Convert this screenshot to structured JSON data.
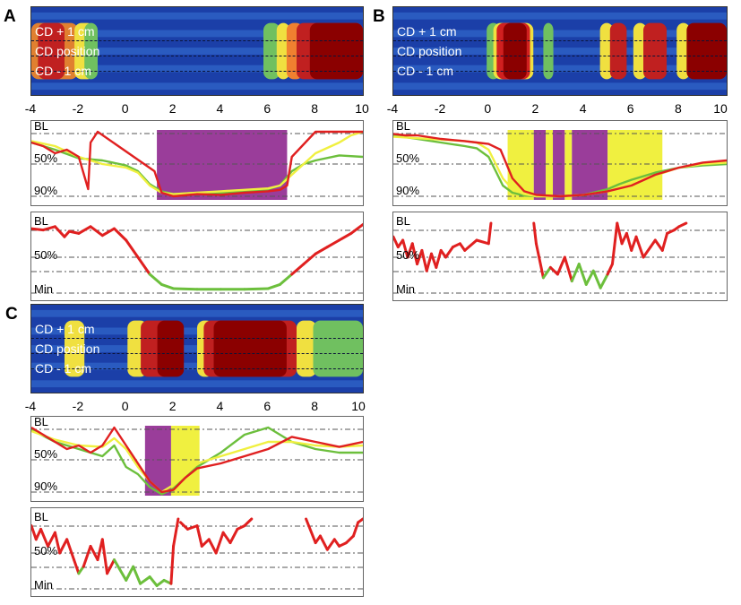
{
  "panels": {
    "A": {
      "letter": "A"
    },
    "B": {
      "letter": "B"
    },
    "C": {
      "letter": "C"
    }
  },
  "heatmap_labels": [
    "CD + 1 cm",
    "CD position",
    "CD - 1 cm"
  ],
  "axis_ticks": [
    "-4",
    "-2",
    "0",
    "2",
    "4",
    "6",
    "8",
    "10"
  ],
  "trace_levels_top": [
    "BL",
    "50%",
    "90%"
  ],
  "trace_levels_bottom": [
    "BL",
    "50%",
    "Min"
  ],
  "colors": {
    "red": "#e02020",
    "yellow": "#f0f040",
    "green": "#6cbf3c",
    "purple": "#9a3d9a",
    "dark_red": "#8b0000"
  },
  "chart_data": [
    {
      "panel": "A",
      "type": "line",
      "x_range": [
        -4,
        10
      ],
      "heatmap_rows": [
        "CD + 1 cm",
        "CD position",
        "CD - 1 cm"
      ],
      "shaded_regions": [
        {
          "from": 1.3,
          "to": 6.8,
          "color": "purple"
        }
      ],
      "series_top": [
        {
          "color": "red",
          "x": [
            -4,
            -3.5,
            -3,
            -2.5,
            -2,
            -1.6,
            -1.5,
            -1.2,
            1.2,
            1.5,
            2,
            3,
            4,
            5,
            6,
            6.5,
            6.8,
            7,
            8,
            9,
            10
          ],
          "y": [
            20,
            25,
            35,
            30,
            40,
            85,
            20,
            5,
            60,
            90,
            95,
            92,
            93,
            90,
            88,
            86,
            80,
            40,
            5,
            5,
            5
          ]
        },
        {
          "color": "yellow",
          "x": [
            -4,
            -3,
            -2,
            -1,
            0,
            0.5,
            1,
            1.5,
            2,
            3,
            4,
            5,
            6,
            6.5,
            7,
            7.5,
            8,
            9,
            9.5,
            10
          ],
          "y": [
            18,
            25,
            40,
            50,
            55,
            62,
            80,
            90,
            92,
            90,
            88,
            86,
            84,
            80,
            65,
            50,
            35,
            20,
            10,
            5
          ]
        },
        {
          "color": "green",
          "x": [
            -4,
            -3.5,
            -3,
            -2,
            -1,
            0,
            0.5,
            1,
            1.5,
            2,
            3,
            4,
            5,
            6,
            6.5,
            7,
            7.5,
            8,
            9,
            10
          ],
          "y": [
            20,
            25,
            30,
            42,
            45,
            52,
            60,
            78,
            88,
            92,
            90,
            90,
            88,
            85,
            80,
            60,
            50,
            45,
            38,
            40
          ]
        }
      ],
      "series_bottom": [
        {
          "x": [
            -4,
            -3.5,
            -3,
            -2.6,
            -2.4,
            -2,
            -1.5,
            -1,
            -0.5,
            0,
            0.5,
            1,
            1.5,
            2,
            3,
            4,
            5,
            6,
            6.5,
            7,
            7.5,
            8,
            8.5,
            9,
            9.5,
            10
          ],
          "y": [
            8,
            10,
            5,
            20,
            12,
            15,
            5,
            18,
            8,
            25,
            50,
            75,
            90,
            96,
            97,
            97,
            97,
            96,
            90,
            75,
            60,
            45,
            35,
            25,
            15,
            2
          ]
        }
      ]
    },
    {
      "panel": "B",
      "type": "line",
      "x_range": [
        -4,
        10
      ],
      "heatmap_rows": [
        "CD + 1 cm",
        "CD position",
        "CD - 1 cm"
      ],
      "shaded_regions": [
        {
          "from": 0.8,
          "to": 1.9,
          "color": "yellow"
        },
        {
          "from": 1.9,
          "to": 2.4,
          "color": "purple"
        },
        {
          "from": 2.4,
          "to": 2.7,
          "color": "yellow"
        },
        {
          "from": 2.7,
          "to": 3.2,
          "color": "purple"
        },
        {
          "from": 3.2,
          "to": 3.5,
          "color": "yellow"
        },
        {
          "from": 3.5,
          "to": 5.0,
          "color": "purple"
        },
        {
          "from": 5.0,
          "to": 7.3,
          "color": "yellow"
        }
      ],
      "series_top": [
        {
          "color": "red",
          "x": [
            -4,
            -3.5,
            -3,
            -2,
            -1,
            -0.5,
            0,
            0.5,
            1,
            1.5,
            2,
            3,
            4,
            5,
            6,
            7,
            8,
            9,
            10
          ],
          "y": [
            8,
            10,
            10,
            15,
            18,
            20,
            22,
            30,
            70,
            88,
            93,
            95,
            93,
            88,
            80,
            65,
            55,
            48,
            45
          ]
        },
        {
          "color": "yellow",
          "x": [
            -4,
            -3,
            -2,
            -1,
            -0.5,
            0,
            0.3,
            0.6,
            1,
            1.5,
            2,
            3,
            4,
            5,
            6,
            7,
            8,
            9,
            10
          ],
          "y": [
            12,
            14,
            16,
            18,
            20,
            30,
            50,
            70,
            85,
            92,
            95,
            95,
            93,
            88,
            80,
            66,
            55,
            50,
            48
          ]
        },
        {
          "color": "green",
          "x": [
            -4,
            -3,
            -2,
            -1,
            -0.5,
            0,
            0.3,
            0.6,
            1,
            1.5,
            2,
            3,
            4,
            5,
            5.5,
            6,
            7,
            8,
            9,
            10
          ],
          "y": [
            10,
            15,
            20,
            25,
            28,
            40,
            60,
            80,
            90,
            94,
            95,
            95,
            93,
            85,
            78,
            72,
            62,
            55,
            52,
            50
          ]
        }
      ],
      "series_bottom": [
        {
          "x": [
            -4,
            -3.8,
            -3.6,
            -3.4,
            -3.2,
            -3,
            -2.8,
            -2.6,
            -2.4,
            -2.2,
            -2,
            -1.8,
            -1.5,
            -1.2,
            -1,
            -0.5,
            0,
            0.1
          ],
          "y": [
            20,
            35,
            25,
            50,
            30,
            60,
            40,
            70,
            45,
            65,
            40,
            50,
            35,
            30,
            40,
            25,
            30,
            0
          ]
        },
        {
          "x": [
            1.9,
            2,
            2.3,
            2.6,
            2.9,
            3.2,
            3.5,
            3.8,
            4.1,
            4.4,
            4.7,
            5,
            5.2,
            5.4
          ],
          "y": [
            0,
            30,
            80,
            65,
            75,
            50,
            85,
            60,
            90,
            70,
            95,
            75,
            60,
            0
          ]
        },
        {
          "x": [
            5.4,
            5.6,
            5.8,
            6,
            6.2,
            6.5,
            6.8,
            7,
            7.3,
            7.5,
            7.8,
            8,
            8.3
          ],
          "y": [
            0,
            30,
            15,
            40,
            20,
            50,
            35,
            25,
            40,
            15,
            10,
            5,
            0
          ]
        }
      ]
    },
    {
      "panel": "C",
      "type": "line",
      "x_range": [
        -4,
        10
      ],
      "heatmap_rows": [
        "CD + 1 cm",
        "CD position",
        "CD - 1 cm"
      ],
      "shaded_regions": [
        {
          "from": 0.8,
          "to": 1.9,
          "color": "purple"
        },
        {
          "from": 1.9,
          "to": 3.1,
          "color": "yellow"
        }
      ],
      "series_top": [
        {
          "color": "red",
          "x": [
            -4,
            -3.5,
            -3,
            -2.5,
            -2,
            -1.5,
            -1,
            -0.5,
            0,
            0.5,
            1,
            1.5,
            2,
            2.5,
            3,
            4,
            5,
            6,
            7,
            8,
            9,
            10
          ],
          "y": [
            5,
            15,
            25,
            35,
            30,
            40,
            30,
            5,
            30,
            55,
            80,
            95,
            92,
            75,
            62,
            55,
            45,
            35,
            18,
            25,
            32,
            25
          ]
        },
        {
          "color": "yellow",
          "x": [
            -4,
            -3,
            -2,
            -1,
            -0.5,
            0,
            0.5,
            1,
            1.5,
            2,
            2.5,
            3,
            4,
            5,
            6,
            7,
            8,
            9,
            10
          ],
          "y": [
            10,
            22,
            30,
            32,
            20,
            35,
            60,
            80,
            95,
            85,
            65,
            55,
            45,
            35,
            25,
            25,
            30,
            32,
            30
          ]
        },
        {
          "color": "green",
          "x": [
            -4,
            -3,
            -2,
            -1,
            -0.5,
            0,
            0.5,
            1,
            1.5,
            2,
            2.5,
            3,
            4,
            5,
            6,
            7,
            8,
            9,
            10
          ],
          "y": [
            8,
            25,
            35,
            45,
            30,
            60,
            70,
            88,
            98,
            90,
            75,
            60,
            40,
            15,
            5,
            25,
            35,
            40,
            40
          ]
        }
      ],
      "series_bottom": [
        {
          "x": [
            -4,
            -3.8,
            -3.6,
            -3.3,
            -3,
            -2.8,
            -2.5,
            -2.2,
            -2,
            -1.8,
            -1.5,
            -1.2,
            -1,
            -0.8,
            -0.5,
            0,
            0.3,
            0.6,
            1,
            1.3,
            1.6,
            1.9,
            2,
            2.2
          ],
          "y": [
            10,
            30,
            15,
            40,
            20,
            50,
            30,
            60,
            80,
            70,
            40,
            60,
            30,
            80,
            60,
            90,
            70,
            95,
            85,
            98,
            90,
            95,
            40,
            0
          ]
        },
        {
          "x": [
            2.3,
            2.6,
            3,
            3.2,
            3.5,
            3.8,
            4.1,
            4.4,
            4.7,
            5,
            5.3
          ],
          "y": [
            5,
            15,
            10,
            40,
            30,
            50,
            20,
            35,
            15,
            10,
            0
          ]
        },
        {
          "x": [
            7.6,
            8,
            8.2,
            8.5,
            8.8,
            9,
            9.3,
            9.6,
            9.8,
            10
          ],
          "y": [
            0,
            35,
            25,
            45,
            30,
            40,
            35,
            25,
            5,
            0
          ]
        }
      ]
    }
  ]
}
